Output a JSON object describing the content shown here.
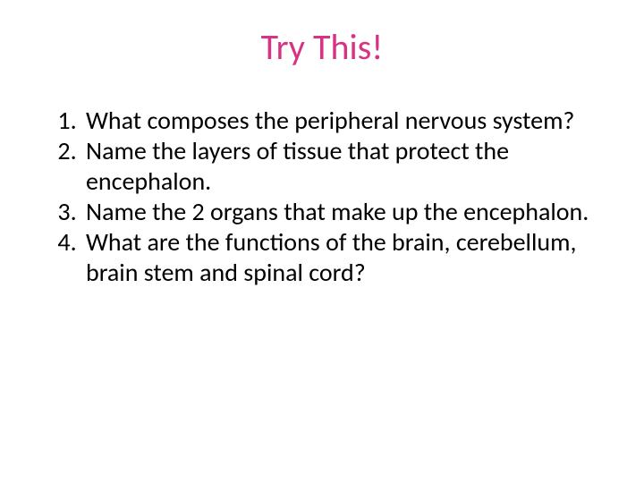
{
  "slide": {
    "title": "Try This!",
    "title_color": "#d63384",
    "title_fontsize": 40,
    "title_fontfamily": "Calibri, 'Segoe UI', Arial, sans-serif",
    "body_color": "#000000",
    "body_fontsize": 28,
    "body_lineheight": 34,
    "body_fontfamily": "Calibri, 'Segoe UI', Arial, sans-serif",
    "background_color": "#ffffff",
    "items": [
      "What composes the peripheral nervous system?",
      "Name the layers of tissue that protect the encephalon.",
      "Name the 2 organs that make up the encephalon.",
      "What are the functions of the brain, cerebellum, brain stem and spinal cord?"
    ]
  }
}
